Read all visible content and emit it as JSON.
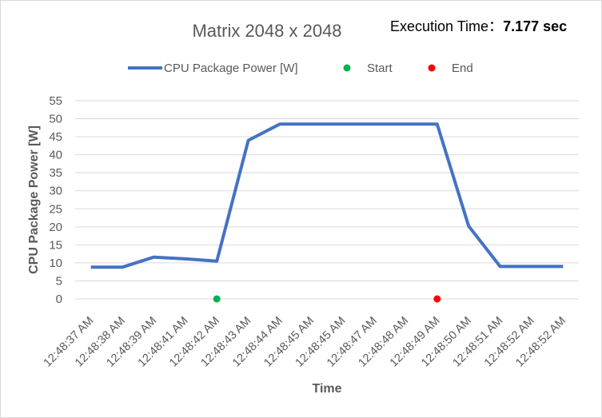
{
  "execution_time": {
    "label": "Execution Time：",
    "value": "7.177 sec"
  },
  "colors": {
    "power_line": "#4472C4",
    "start_marker": "#00B050",
    "end_marker": "#FF0000",
    "grid": "#d9d9d9",
    "text": "#595959"
  },
  "chart_data": {
    "type": "line",
    "title": "Matrix 2048 x 2048",
    "xlabel": "Time",
    "ylabel": "CPU Package Power [W]",
    "ylim": [
      0,
      55
    ],
    "yticks": [
      0,
      5,
      10,
      15,
      20,
      25,
      30,
      35,
      40,
      45,
      50,
      55
    ],
    "grid": true,
    "legend": "top",
    "categories": [
      "12:48:37 AM",
      "12:48:38 AM",
      "12:48:39 AM",
      "12:48:41 AM",
      "12:48:42 AM",
      "12:48:43 AM",
      "12:48:44 AM",
      "12:48:45 AM",
      "12:48:45 AM",
      "12:48:47 AM",
      "12:48:48 AM",
      "12:48:49 AM",
      "12:48:50 AM",
      "12:48:51 AM",
      "12:48:52 AM",
      "12:48:52 AM"
    ],
    "series": [
      {
        "name": "CPU Package Power [W]",
        "type": "line",
        "values": [
          8.8,
          8.8,
          11.6,
          11.1,
          10.5,
          44,
          48.5,
          48.5,
          48.5,
          48.5,
          48.5,
          48.5,
          20.2,
          9,
          9,
          9
        ]
      },
      {
        "name": "Start",
        "type": "marker",
        "points": [
          {
            "category_index": 4,
            "value": 0
          }
        ]
      },
      {
        "name": "End",
        "type": "marker",
        "points": [
          {
            "category_index": 11,
            "value": 0
          }
        ]
      }
    ]
  }
}
